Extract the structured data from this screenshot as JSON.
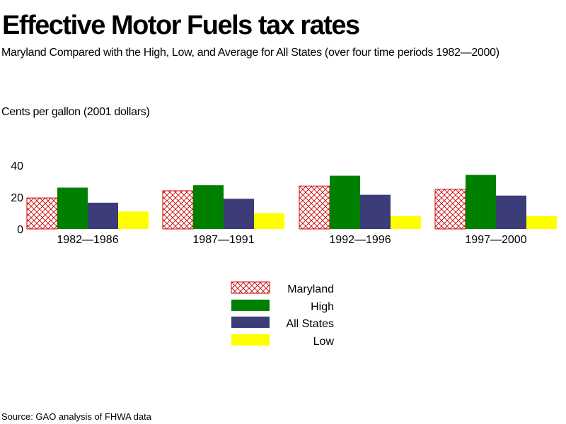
{
  "chart_data": {
    "type": "bar",
    "title": "Effective Motor Fuels tax rates",
    "subtitle": "Maryland Compared with the High, Low, and Average for All States (over four time periods 1982—2000)",
    "ylabel": "Cents per gallon (2001 dollars)",
    "xlabel": "",
    "categories": [
      "1982—1986",
      "1987—1991",
      "1992—1996",
      "1997—2000"
    ],
    "ylim": [
      0,
      40
    ],
    "yticks": [
      "0",
      "20",
      "40"
    ],
    "grid": false,
    "legend_placement": "bottom-center",
    "series": [
      {
        "name": "Maryland",
        "values": [
          19.5,
          24,
          27,
          25
        ],
        "color": "#cc0000",
        "pattern": "crosshatch"
      },
      {
        "name": "High",
        "values": [
          26,
          27.5,
          33.5,
          34
        ],
        "color": "#008000",
        "pattern": "solid"
      },
      {
        "name": "All States",
        "values": [
          16.5,
          19,
          21.5,
          21
        ],
        "color": "#3c3c78",
        "pattern": "solid"
      },
      {
        "name": "Low",
        "values": [
          11,
          10,
          8,
          8
        ],
        "color": "#ffff00",
        "pattern": "solid"
      }
    ]
  },
  "source": "Source: GAO analysis of FHWA data"
}
